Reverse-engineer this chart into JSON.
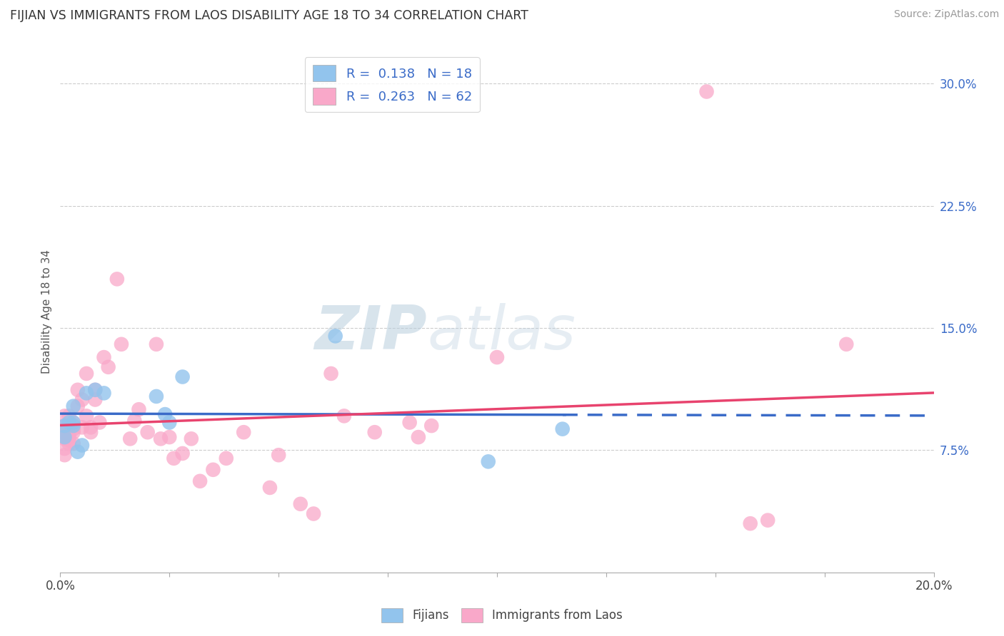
{
  "title": "FIJIAN VS IMMIGRANTS FROM LAOS DISABILITY AGE 18 TO 34 CORRELATION CHART",
  "source": "Source: ZipAtlas.com",
  "ylabel_label": "Disability Age 18 to 34",
  "xmin": 0.0,
  "xmax": 0.2,
  "ymin": 0.0,
  "ymax": 0.32,
  "fijian_R": "0.138",
  "fijian_N": "18",
  "laos_R": "0.263",
  "laos_N": "62",
  "fijian_color": "#92C4ED",
  "laos_color": "#F9A8C9",
  "fijian_line_color": "#3A6BC8",
  "laos_line_color": "#E8436E",
  "fijian_x": [
    0.001,
    0.001,
    0.002,
    0.003,
    0.003,
    0.003,
    0.004,
    0.005,
    0.006,
    0.008,
    0.01,
    0.022,
    0.024,
    0.025,
    0.028,
    0.063,
    0.098,
    0.115
  ],
  "fijian_y": [
    0.09,
    0.083,
    0.092,
    0.092,
    0.09,
    0.102,
    0.074,
    0.078,
    0.11,
    0.112,
    0.11,
    0.108,
    0.097,
    0.092,
    0.12,
    0.145,
    0.068,
    0.088
  ],
  "laos_x": [
    0.001,
    0.001,
    0.001,
    0.001,
    0.001,
    0.001,
    0.001,
    0.001,
    0.002,
    0.002,
    0.002,
    0.002,
    0.002,
    0.002,
    0.003,
    0.003,
    0.003,
    0.003,
    0.004,
    0.004,
    0.005,
    0.005,
    0.006,
    0.006,
    0.007,
    0.007,
    0.008,
    0.008,
    0.009,
    0.01,
    0.011,
    0.013,
    0.014,
    0.016,
    0.017,
    0.018,
    0.02,
    0.022,
    0.023,
    0.025,
    0.026,
    0.028,
    0.03,
    0.032,
    0.035,
    0.038,
    0.042,
    0.048,
    0.05,
    0.055,
    0.058,
    0.062,
    0.065,
    0.072,
    0.08,
    0.082,
    0.085,
    0.1,
    0.148,
    0.158,
    0.162,
    0.18
  ],
  "laos_y": [
    0.083,
    0.082,
    0.086,
    0.09,
    0.096,
    0.088,
    0.076,
    0.072,
    0.081,
    0.085,
    0.091,
    0.079,
    0.083,
    0.096,
    0.086,
    0.079,
    0.092,
    0.088,
    0.112,
    0.102,
    0.089,
    0.106,
    0.122,
    0.096,
    0.089,
    0.086,
    0.112,
    0.106,
    0.092,
    0.132,
    0.126,
    0.18,
    0.14,
    0.082,
    0.093,
    0.1,
    0.086,
    0.14,
    0.082,
    0.083,
    0.07,
    0.073,
    0.082,
    0.056,
    0.063,
    0.07,
    0.086,
    0.052,
    0.072,
    0.042,
    0.036,
    0.122,
    0.096,
    0.086,
    0.092,
    0.083,
    0.09,
    0.132,
    0.295,
    0.03,
    0.032,
    0.14
  ],
  "legend_fijian_label": "Fijians",
  "legend_laos_label": "Immigrants from Laos"
}
